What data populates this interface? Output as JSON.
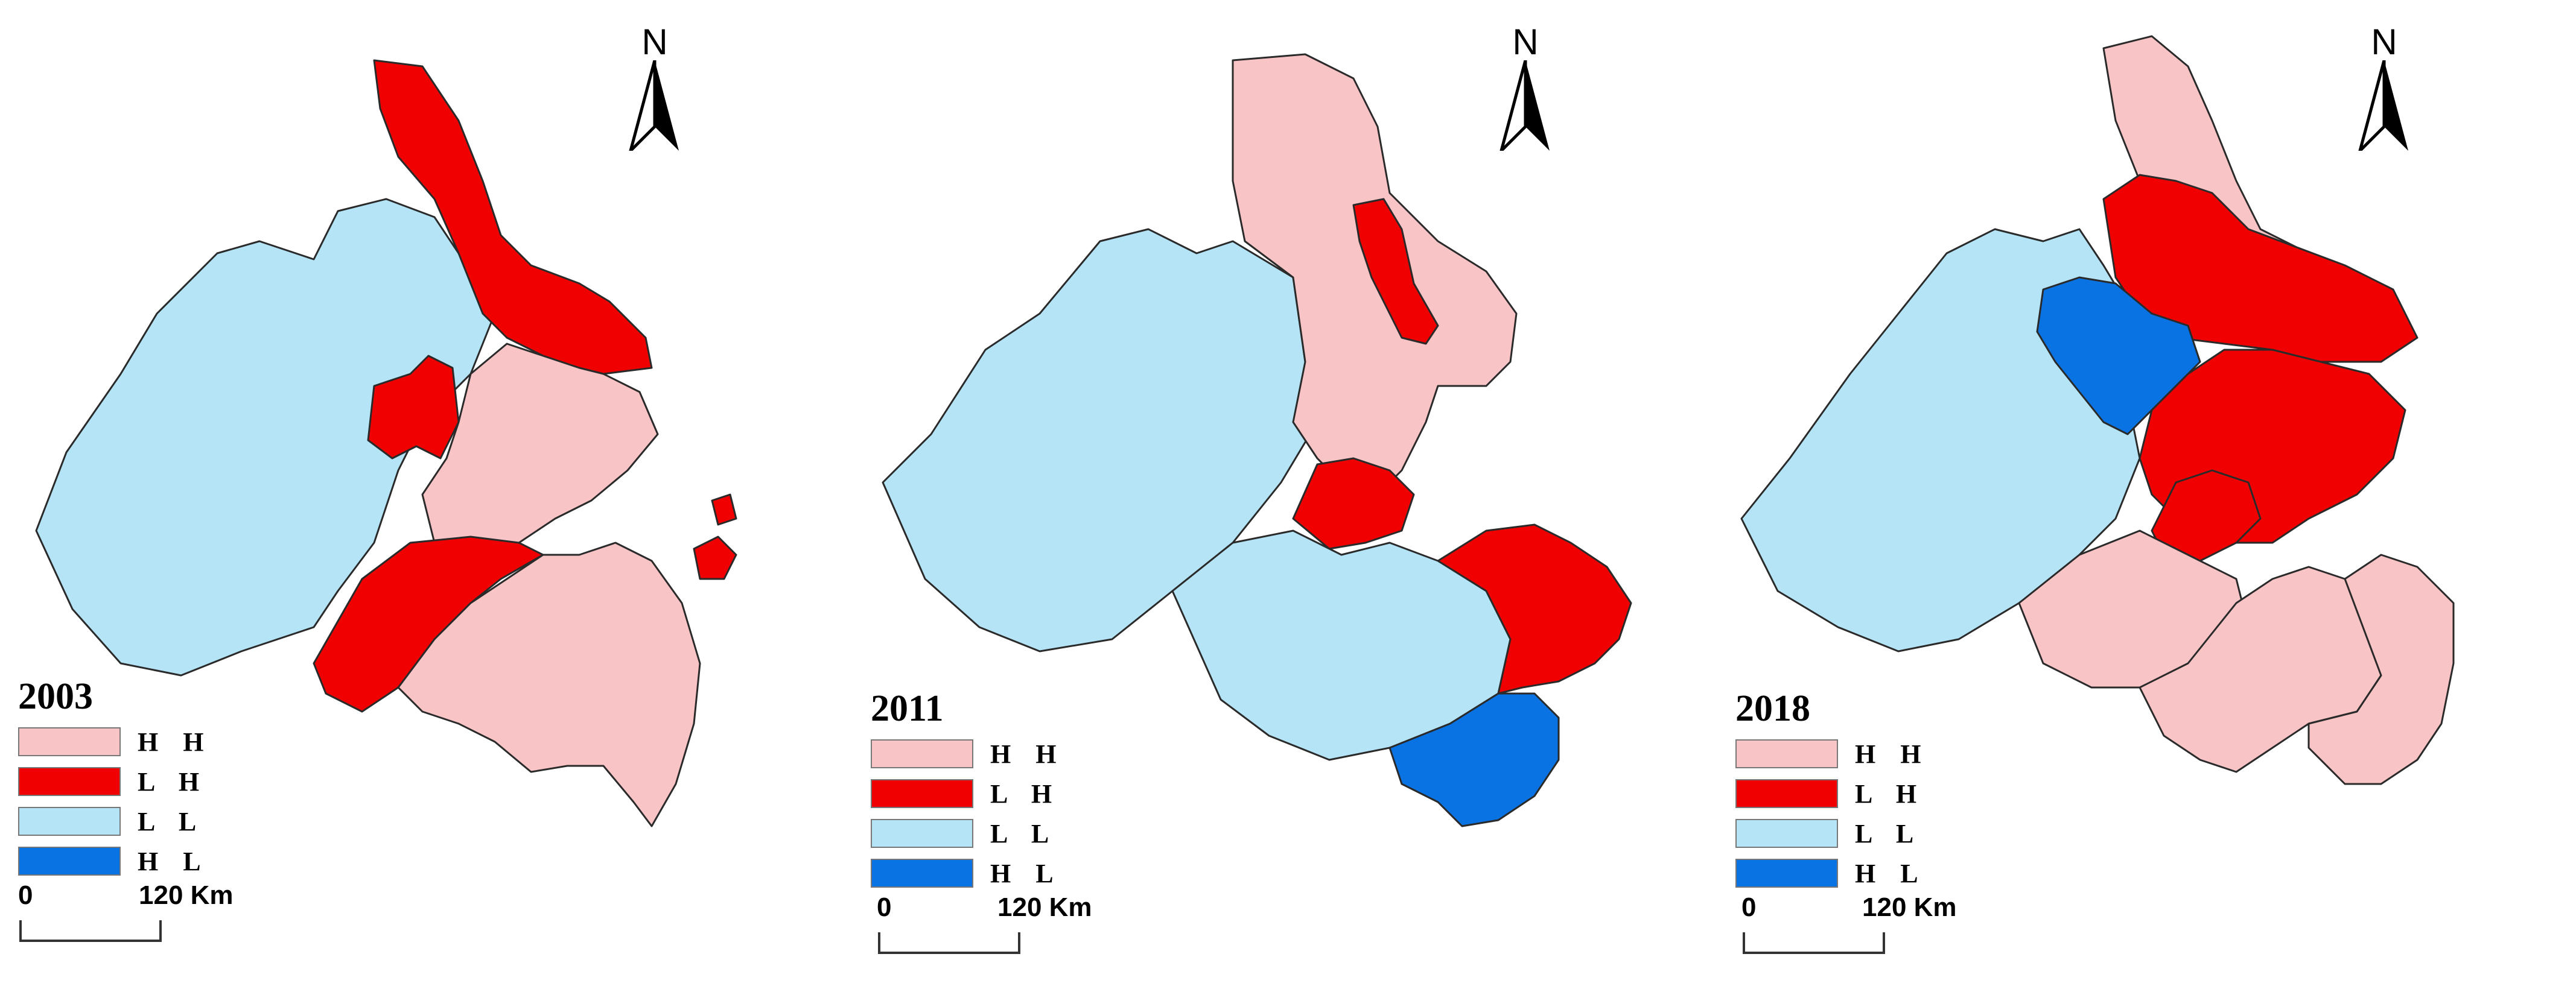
{
  "colors": {
    "HH": "#f9c4c6",
    "LH": "#f00000",
    "LL": "#b4e4f6",
    "HL": "#0a73e4",
    "border": "#2a2a2a"
  },
  "north_label": "N",
  "legend": [
    {
      "code": "HH",
      "label": "H   H"
    },
    {
      "code": "LH",
      "label": "L   H"
    },
    {
      "code": "LL",
      "label": "L   L"
    },
    {
      "code": "HL",
      "label": "H   L"
    }
  ],
  "scale": {
    "start": "0",
    "end": "120 Km"
  },
  "panels": [
    {
      "year": "2003",
      "regions": {
        "north": "LH",
        "c1": "LL",
        "c2": "LH",
        "c3": "HH",
        "c4": "LH",
        "sw": "HH",
        "se": "HH",
        "island": "LH",
        "west": "LL"
      }
    },
    {
      "year": "2011",
      "regions": {
        "north": "HH",
        "c1": "LH",
        "c2": "HH",
        "c3": "LH",
        "c4": "LL",
        "sw": "LL",
        "se": "LH",
        "south": "HL",
        "west": "LL"
      }
    },
    {
      "year": "2018",
      "regions": {
        "north": "HH",
        "c1": "LH",
        "c2": "HL",
        "c3": "LH",
        "c4": "LH",
        "sw": "HH",
        "se": "HH",
        "island": "HH",
        "west": "LL"
      }
    }
  ]
}
